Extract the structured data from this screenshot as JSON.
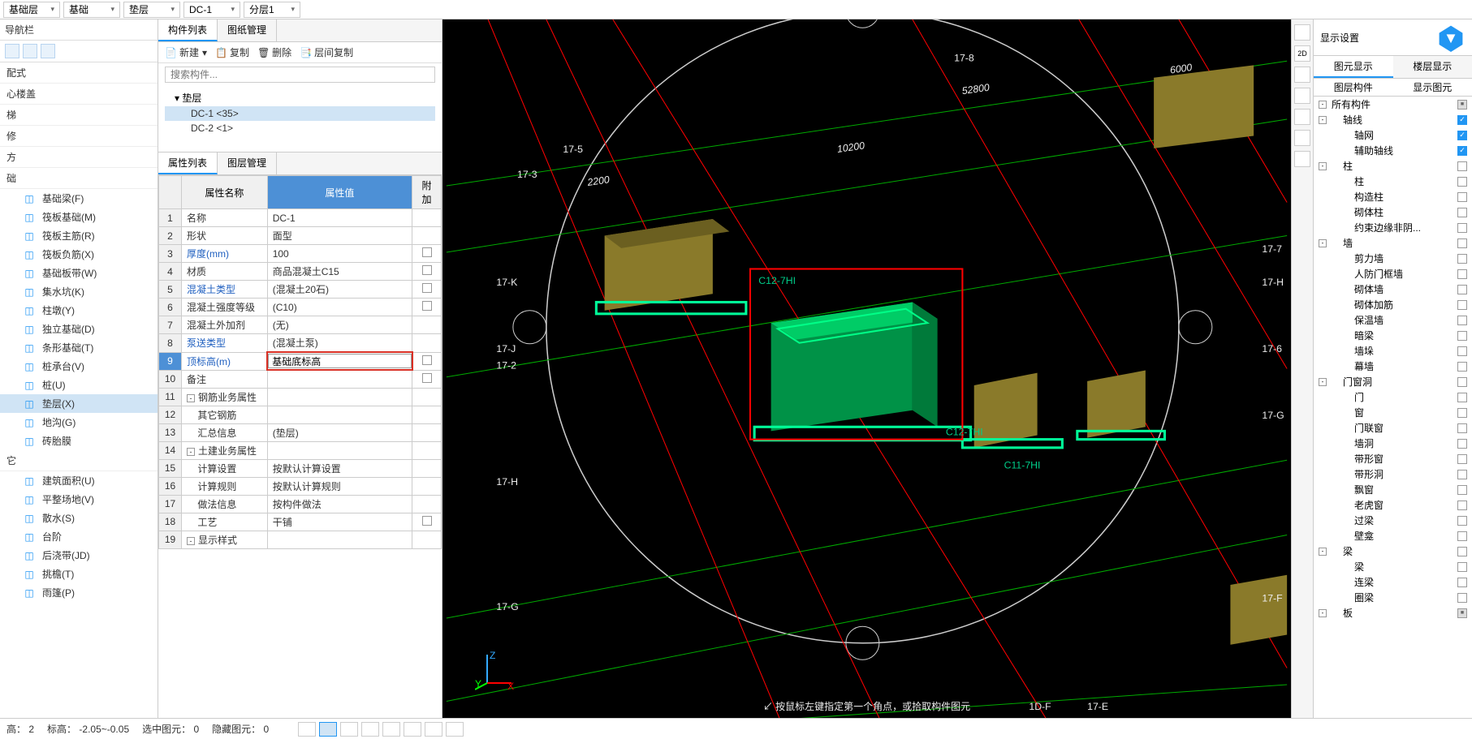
{
  "top_dropdowns": {
    "d1": "基础层",
    "d2": "基础",
    "d3": "垫层",
    "d4": "DC-1",
    "d5": "分层1"
  },
  "left_nav": {
    "title": "导航栏",
    "categories": [
      "配式",
      "心楼盖",
      "梯",
      "修",
      "方",
      "础"
    ],
    "items": [
      {
        "label": "基础梁(F)",
        "icon": "beam"
      },
      {
        "label": "筏板基础(M)",
        "icon": "grid"
      },
      {
        "label": "筏板主筋(R)",
        "icon": "rebar"
      },
      {
        "label": "筏板负筋(X)",
        "icon": "rebar2"
      },
      {
        "label": "基础板带(W)",
        "icon": "strip"
      },
      {
        "label": "集水坑(K)",
        "icon": "sump"
      },
      {
        "label": "柱墩(Y)",
        "icon": "pier"
      },
      {
        "label": "独立基础(D)",
        "icon": "iso"
      },
      {
        "label": "条形基础(T)",
        "icon": "strip2"
      },
      {
        "label": "桩承台(V)",
        "icon": "cap"
      },
      {
        "label": "桩(U)",
        "icon": "pile"
      },
      {
        "label": "垫层(X)",
        "icon": "cushion",
        "selected": true
      },
      {
        "label": "地沟(G)",
        "icon": "trench"
      },
      {
        "label": "砖胎膜",
        "icon": "brick"
      }
    ],
    "cat_other_label": "它",
    "items_other": [
      {
        "label": "建筑面积(U)",
        "icon": "area"
      },
      {
        "label": "平整场地(V)",
        "icon": "level"
      },
      {
        "label": "散水(S)",
        "icon": "apron"
      },
      {
        "label": "台阶",
        "icon": "steps"
      },
      {
        "label": "后浇带(JD)",
        "icon": "postcast"
      },
      {
        "label": "挑檐(T)",
        "icon": "eave"
      },
      {
        "label": "雨篷(P)",
        "icon": "canopy"
      }
    ]
  },
  "comp_list": {
    "tabs": [
      "构件列表",
      "图纸管理"
    ],
    "toolbar": {
      "new": "新建",
      "copy": "复制",
      "delete": "删除",
      "layer_copy": "层间复制"
    },
    "search_placeholder": "搜索构件...",
    "root": "垫层",
    "children": [
      "DC-1  <35>",
      "DC-2  <1>"
    ]
  },
  "prop_list": {
    "tabs": [
      "属性列表",
      "图层管理"
    ],
    "headers": {
      "name": "属性名称",
      "value": "属性值",
      "extra": "附加"
    },
    "rows": [
      {
        "i": 1,
        "name": "名称",
        "val": "DC-1"
      },
      {
        "i": 2,
        "name": "形状",
        "val": "面型"
      },
      {
        "i": 3,
        "name": "厚度(mm)",
        "val": "100",
        "chk": true,
        "blue": true
      },
      {
        "i": 4,
        "name": "材质",
        "val": "商品混凝土C15",
        "chk": true
      },
      {
        "i": 5,
        "name": "混凝土类型",
        "val": "(混凝土20石)",
        "chk": true,
        "blue": true
      },
      {
        "i": 6,
        "name": "混凝土强度等级",
        "val": "(C10)",
        "chk": true
      },
      {
        "i": 7,
        "name": "混凝土外加剂",
        "val": "(无)"
      },
      {
        "i": 8,
        "name": "泵送类型",
        "val": "(混凝土泵)",
        "blue": true
      },
      {
        "i": 9,
        "name": "顶标高(m)",
        "val": "基础底标高",
        "chk": true,
        "blue": true,
        "highlight": true
      },
      {
        "i": 10,
        "name": "备注",
        "val": "",
        "chk": true
      },
      {
        "i": 11,
        "name": "钢筋业务属性",
        "group": true
      },
      {
        "i": 12,
        "name": "其它钢筋",
        "indent": 1
      },
      {
        "i": 13,
        "name": "汇总信息",
        "val": "(垫层)",
        "indent": 1
      },
      {
        "i": 14,
        "name": "土建业务属性",
        "group": true
      },
      {
        "i": 15,
        "name": "计算设置",
        "val": "按默认计算设置",
        "indent": 1
      },
      {
        "i": 16,
        "name": "计算规则",
        "val": "按默认计算规则",
        "indent": 1
      },
      {
        "i": 17,
        "name": "做法信息",
        "val": "按构件做法",
        "indent": 1
      },
      {
        "i": 18,
        "name": "工艺",
        "val": "干铺",
        "indent": 1,
        "chk": true
      },
      {
        "i": 19,
        "name": "显示样式",
        "group": true
      }
    ]
  },
  "viewport": {
    "hint": "↙ 按鼠标左键指定第一个角点，或拾取构件图元",
    "grid_labels": [
      "17-3",
      "17-5",
      "17-K",
      "17-J",
      "17-2",
      "17-H",
      "17-G",
      "17-7",
      "17-H",
      "17-6",
      "17-G",
      "17-F",
      "17-8",
      "17-E"
    ],
    "dim_labels": [
      "2200",
      "10200",
      "52800",
      "6000"
    ],
    "tag_labels": [
      "C12-7HI",
      "C12-7HI",
      "C11-7HI"
    ],
    "axes": {
      "x": "X",
      "y": "Y",
      "z": "Z"
    },
    "colors": {
      "bg": "#000000",
      "grid_red": "#ff0000",
      "grid_green": "#00aa00",
      "box_green": "#00cc66",
      "box_green_dark": "#009247",
      "box_olive": "#8a7a2a",
      "outline_cyan": "#00ff99",
      "circle": "#cccccc",
      "selection": "#ff0000",
      "text": "#eeeeee"
    }
  },
  "display": {
    "title": "显示设置",
    "tabs": [
      "图元显示",
      "楼层显示"
    ],
    "cols": [
      "图层构件",
      "显示图元"
    ],
    "tree": [
      {
        "lbl": "所有构件",
        "exp": "-",
        "cb": "partial"
      },
      {
        "lbl": "轴线",
        "exp": "-",
        "cb": "on",
        "d": 1
      },
      {
        "lbl": "轴网",
        "cb": "on",
        "d": 2
      },
      {
        "lbl": "辅助轴线",
        "cb": "on",
        "d": 2
      },
      {
        "lbl": "柱",
        "exp": "-",
        "cb": "off",
        "d": 1
      },
      {
        "lbl": "柱",
        "cb": "off",
        "d": 2
      },
      {
        "lbl": "构造柱",
        "cb": "off",
        "d": 2
      },
      {
        "lbl": "砌体柱",
        "cb": "off",
        "d": 2
      },
      {
        "lbl": "约束边缘非阴...",
        "cb": "off",
        "d": 2
      },
      {
        "lbl": "墙",
        "exp": "-",
        "cb": "off",
        "d": 1
      },
      {
        "lbl": "剪力墙",
        "cb": "off",
        "d": 2
      },
      {
        "lbl": "人防门框墙",
        "cb": "off",
        "d": 2
      },
      {
        "lbl": "砌体墙",
        "cb": "off",
        "d": 2
      },
      {
        "lbl": "砌体加筋",
        "cb": "off",
        "d": 2
      },
      {
        "lbl": "保温墙",
        "cb": "off",
        "d": 2
      },
      {
        "lbl": "暗梁",
        "cb": "off",
        "d": 2
      },
      {
        "lbl": "墙垛",
        "cb": "off",
        "d": 2
      },
      {
        "lbl": "幕墙",
        "cb": "off",
        "d": 2
      },
      {
        "lbl": "门窗洞",
        "exp": "-",
        "cb": "off",
        "d": 1
      },
      {
        "lbl": "门",
        "cb": "off",
        "d": 2
      },
      {
        "lbl": "窗",
        "cb": "off",
        "d": 2
      },
      {
        "lbl": "门联窗",
        "cb": "off",
        "d": 2
      },
      {
        "lbl": "墙洞",
        "cb": "off",
        "d": 2
      },
      {
        "lbl": "带形窗",
        "cb": "off",
        "d": 2
      },
      {
        "lbl": "带形洞",
        "cb": "off",
        "d": 2
      },
      {
        "lbl": "飘窗",
        "cb": "off",
        "d": 2
      },
      {
        "lbl": "老虎窗",
        "cb": "off",
        "d": 2
      },
      {
        "lbl": "过梁",
        "cb": "off",
        "d": 2
      },
      {
        "lbl": "壁龛",
        "cb": "off",
        "d": 2
      },
      {
        "lbl": "梁",
        "exp": "-",
        "cb": "off",
        "d": 1
      },
      {
        "lbl": "梁",
        "cb": "off",
        "d": 2
      },
      {
        "lbl": "连梁",
        "cb": "off",
        "d": 2
      },
      {
        "lbl": "圈梁",
        "cb": "off",
        "d": 2
      },
      {
        "lbl": "板",
        "exp": "-",
        "cb": "partial",
        "d": 1
      }
    ]
  },
  "status": {
    "height_label": "高：",
    "height_val": "2",
    "elev_label": "标高：",
    "elev_val": "-2.05~-0.05",
    "selected_label": "选中图元：",
    "selected_val": "0",
    "hidden_label": "隐藏图元：",
    "hidden_val": "0"
  }
}
